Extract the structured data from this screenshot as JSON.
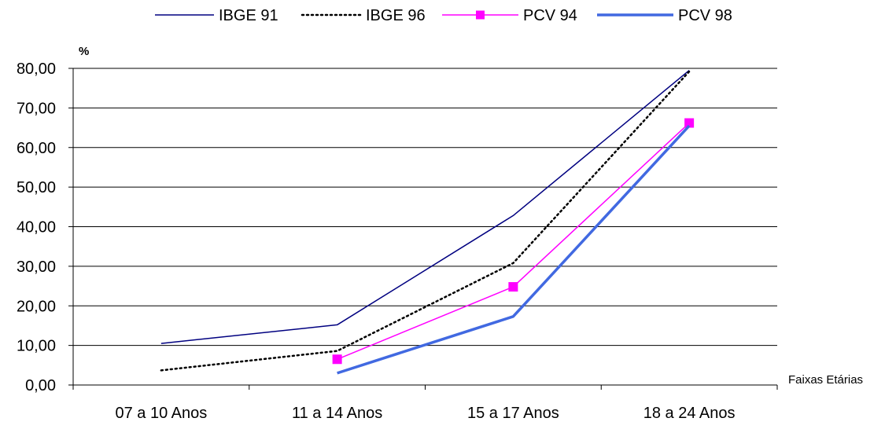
{
  "chart_data": {
    "type": "line",
    "title": "",
    "ylabel": "%",
    "xlabel": "Faixas Etárias",
    "categories": [
      "07 a 10 Anos",
      "11 a 14 Anos",
      "15 a 17 Anos",
      "18 a 24 Anos"
    ],
    "ylim": [
      0,
      80
    ],
    "y_ticks": [
      "0,00",
      "10,00",
      "20,00",
      "30,00",
      "40,00",
      "50,00",
      "60,00",
      "70,00",
      "80,00"
    ],
    "grid": true,
    "legend_position": "top",
    "series": [
      {
        "name": "IBGE 91",
        "color": "#000080",
        "style": "solid",
        "values": [
          10.5,
          15.2,
          42.8,
          79.5
        ]
      },
      {
        "name": "IBGE 96",
        "color": "#000000",
        "style": "dotted",
        "values": [
          3.7,
          8.6,
          30.8,
          79.2
        ]
      },
      {
        "name": "PCV 94",
        "color": "#ff00ff",
        "style": "solid-square-markers",
        "values": [
          null,
          6.5,
          24.8,
          66.2
        ]
      },
      {
        "name": "PCV 98",
        "color": "#4169e1",
        "style": "thick",
        "values": [
          null,
          3.0,
          17.3,
          65.5
        ]
      }
    ]
  }
}
